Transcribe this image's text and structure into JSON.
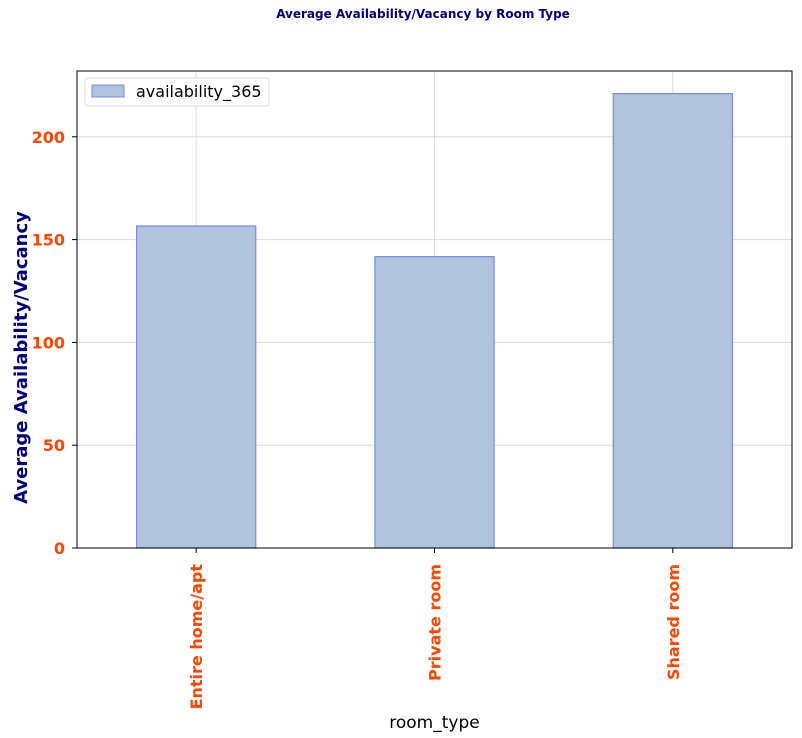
{
  "chart_data": {
    "type": "bar",
    "title": "Average Availability/Vacancy by Room Type",
    "xlabel": "room_type",
    "ylabel": "Average Availability/Vacancy",
    "categories": [
      "Entire home/apt",
      "Private room",
      "Shared room"
    ],
    "series": [
      {
        "name": "availability_365",
        "values": [
          156.6,
          141.7,
          221.0
        ]
      }
    ],
    "ylim": [
      0,
      232
    ],
    "yticks": [
      0,
      50,
      100,
      150,
      200
    ],
    "grid": true,
    "legend_position": "top-left",
    "colors": {
      "bar_fill": "#b0c4de",
      "bar_edge": "#7b86f0",
      "title": "#000080",
      "ylabel": "#000080",
      "tick_labels": "#ff4500",
      "xlabel": "#000000",
      "grid": "#dddddd",
      "axes": "#000000"
    }
  }
}
